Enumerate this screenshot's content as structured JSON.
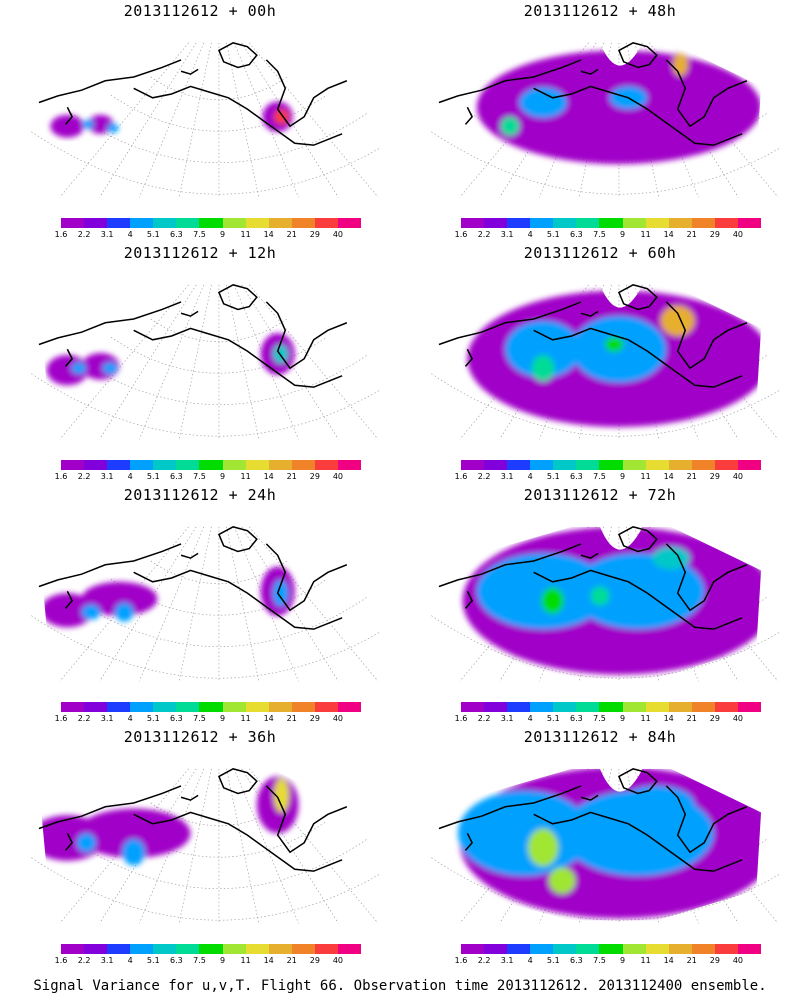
{
  "legend": {
    "labels": [
      "1.6",
      "2.2",
      "3.1",
      "4",
      "5.1",
      "6.3",
      "7.5",
      "9",
      "11",
      "14",
      "21",
      "29",
      "40"
    ],
    "colors": [
      "#a000c8",
      "#8200dc",
      "#1e3cff",
      "#00a0ff",
      "#00c8c8",
      "#00dc96",
      "#00dc00",
      "#a0e632",
      "#e6dc32",
      "#e6af2d",
      "#f08228",
      "#fa3c3c",
      "#f00082"
    ]
  },
  "panels": [
    {
      "title": "2013112612 + 00h",
      "intensity": 0
    },
    {
      "title": "2013112612 + 48h",
      "intensity": 4
    },
    {
      "title": "2013112612 + 12h",
      "intensity": 1
    },
    {
      "title": "2013112612 + 60h",
      "intensity": 5
    },
    {
      "title": "2013112612 + 24h",
      "intensity": 2
    },
    {
      "title": "2013112612 + 72h",
      "intensity": 6
    },
    {
      "title": "2013112612 + 36h",
      "intensity": 3
    },
    {
      "title": "2013112612 + 84h",
      "intensity": 7
    }
  ],
  "footer": "Signal Variance for u,v,T. Flight 66. Observation time 2013112612. 2013112400 ensemble."
}
